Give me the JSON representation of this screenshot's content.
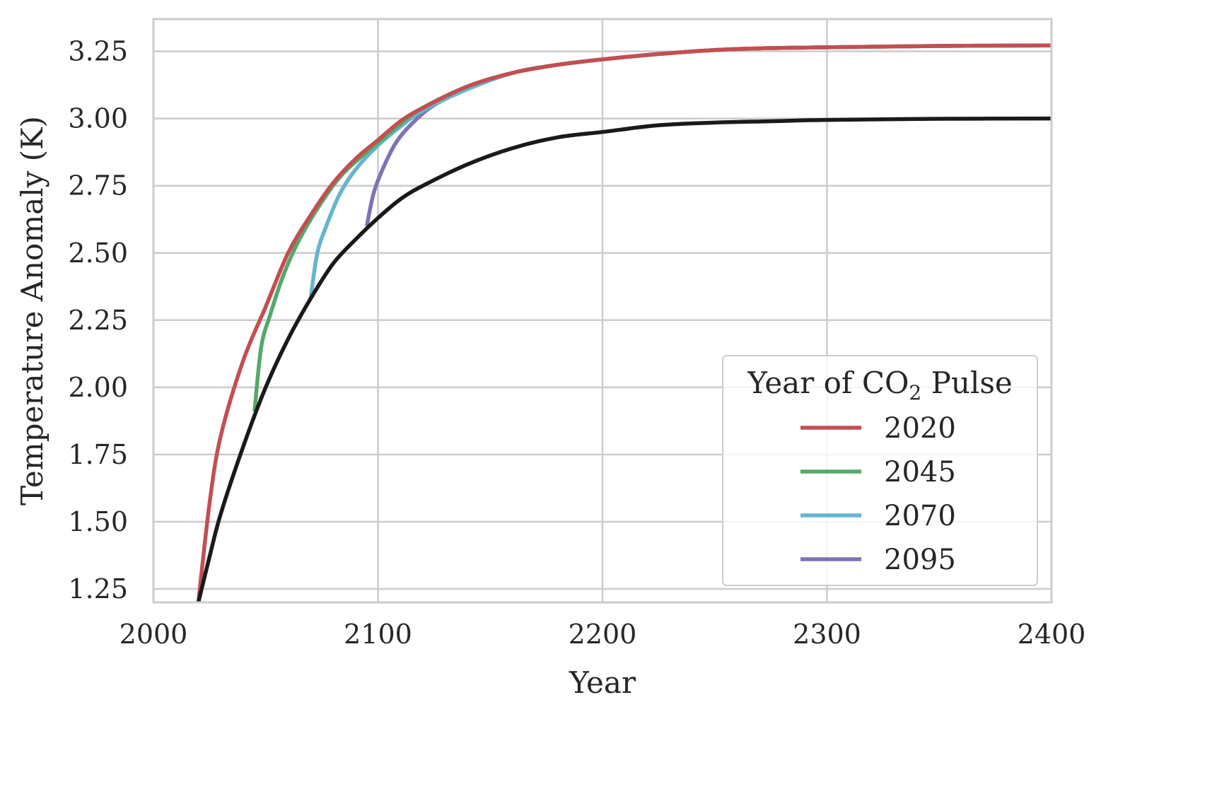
{
  "chart_data": {
    "type": "line",
    "title": "",
    "xlabel": "Year",
    "ylabel": "Temperature Anomaly (K)",
    "xlim": [
      2000,
      2400
    ],
    "ylim": [
      1.2,
      3.37
    ],
    "xticks": [
      2000,
      2100,
      2200,
      2300,
      2400
    ],
    "xtick_labels": [
      "2000",
      "2100",
      "2200",
      "2300",
      "2400"
    ],
    "yticks": [
      1.25,
      1.5,
      1.75,
      2.0,
      2.25,
      2.5,
      2.75,
      3.0,
      3.25
    ],
    "ytick_labels": [
      "1.25",
      "1.50",
      "1.75",
      "2.00",
      "2.25",
      "2.50",
      "2.75",
      "3.00",
      "3.25"
    ],
    "grid": true,
    "legend": {
      "title_prefix": "Year of CO",
      "title_subscript": "2",
      "title_suffix": " Pulse",
      "placement": "lower-right"
    },
    "baseline": {
      "color": "#1a1a1a",
      "x": [
        2020,
        2025,
        2030,
        2040,
        2050,
        2060,
        2070,
        2080,
        2090,
        2100,
        2110,
        2120,
        2140,
        2160,
        2180,
        2200,
        2225,
        2250,
        2275,
        2300,
        2350,
        2400
      ],
      "values": [
        1.2,
        1.37,
        1.53,
        1.78,
        2.0,
        2.18,
        2.33,
        2.46,
        2.55,
        2.63,
        2.7,
        2.75,
        2.83,
        2.89,
        2.93,
        2.95,
        2.975,
        2.985,
        2.99,
        2.995,
        2.999,
        3.0
      ]
    },
    "series": [
      {
        "name": "2020",
        "color": "#c44e52",
        "x": [
          2020,
          2025,
          2030,
          2040,
          2050,
          2060,
          2070,
          2080,
          2090,
          2100,
          2110,
          2120,
          2140,
          2160,
          2180,
          2200,
          2225,
          2250,
          2275,
          2300,
          2350,
          2400
        ],
        "values": [
          1.2,
          1.57,
          1.82,
          2.1,
          2.3,
          2.5,
          2.64,
          2.76,
          2.85,
          2.92,
          2.99,
          3.04,
          3.12,
          3.17,
          3.2,
          3.22,
          3.24,
          3.255,
          3.262,
          3.265,
          3.27,
          3.272
        ]
      },
      {
        "name": "2045",
        "color": "#55a868",
        "x": [
          2045,
          2048,
          2052,
          2058,
          2065,
          2075,
          2085,
          2100,
          2110,
          2120,
          2140,
          2160,
          2180,
          2200,
          2225,
          2250,
          2275,
          2300,
          2350,
          2400
        ],
        "values": [
          1.91,
          2.15,
          2.27,
          2.42,
          2.55,
          2.69,
          2.8,
          2.91,
          2.98,
          3.04,
          3.12,
          3.17,
          3.2,
          3.22,
          3.24,
          3.255,
          3.262,
          3.265,
          3.27,
          3.272
        ]
      },
      {
        "name": "2070",
        "color": "#64b5cd",
        "x": [
          2070,
          2073,
          2077,
          2083,
          2090,
          2100,
          2110,
          2120,
          2140,
          2160,
          2180,
          2200,
          2225,
          2250,
          2275,
          2300,
          2350,
          2400
        ],
        "values": [
          2.33,
          2.5,
          2.6,
          2.72,
          2.81,
          2.9,
          2.97,
          3.03,
          3.11,
          3.17,
          3.2,
          3.22,
          3.24,
          3.255,
          3.262,
          3.265,
          3.27,
          3.272
        ]
      },
      {
        "name": "2095",
        "color": "#8172b3",
        "x": [
          2095,
          2098,
          2102,
          2108,
          2115,
          2125,
          2140,
          2160,
          2180,
          2200,
          2225,
          2250,
          2275,
          2300,
          2350,
          2400
        ],
        "values": [
          2.6,
          2.72,
          2.81,
          2.91,
          2.98,
          3.05,
          3.11,
          3.17,
          3.2,
          3.22,
          3.24,
          3.255,
          3.262,
          3.265,
          3.27,
          3.272
        ]
      }
    ]
  }
}
